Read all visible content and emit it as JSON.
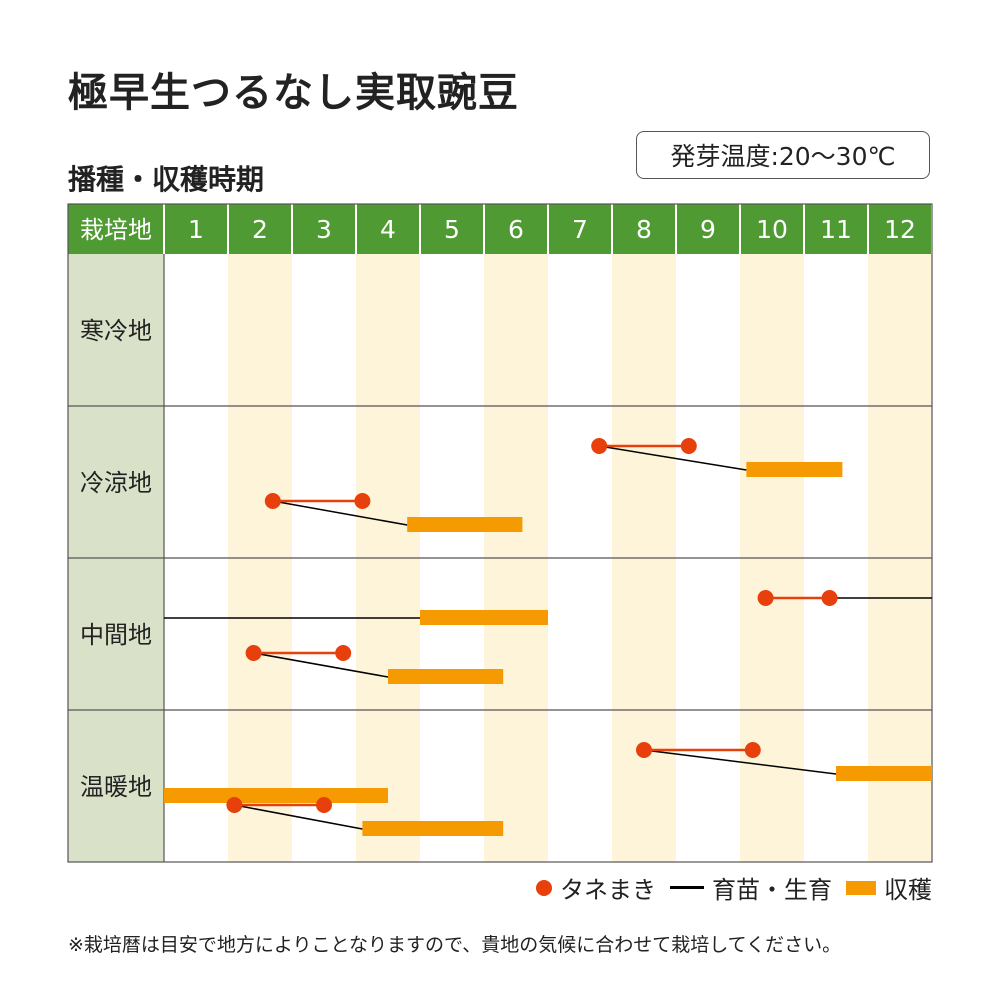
{
  "title": "極早生つるなし実取豌豆",
  "subtitle": "播種・収穫時期",
  "germination_temp": "発芽温度:20〜30℃",
  "note": "※栽培暦は目安で地方によりことなりますので、貴地の気候に合わせて栽培してください。",
  "legend": {
    "sowing": "タネまき",
    "nursery": "育苗・生育",
    "harvest": "収穫"
  },
  "colors": {
    "header": "#4f9a32",
    "region": "#d9e2c8",
    "stripe": "#fdf4d9",
    "sowing": "#e8400c",
    "harvest": "#f59a00",
    "growth": "#000000"
  },
  "chart_data": {
    "type": "gantt",
    "header_label": "栽培地",
    "months": [
      "1",
      "2",
      "3",
      "4",
      "5",
      "6",
      "7",
      "8",
      "9",
      "10",
      "11",
      "12"
    ],
    "regions": [
      {
        "name": "寒冷地",
        "schedules": []
      },
      {
        "name": "冷涼地",
        "schedules": [
          {
            "sow": [
              7.8,
              9.2
            ],
            "harvest": [
              10.1,
              11.6
            ]
          },
          {
            "sow": [
              2.7,
              4.1
            ],
            "harvest": [
              4.8,
              6.6
            ]
          }
        ]
      },
      {
        "name": "中間地",
        "schedules": [
          {
            "sow": [
              10.4,
              11.4
            ],
            "harvest_following_year": [
              5.0,
              7.0
            ]
          },
          {
            "sow": [
              2.4,
              3.8
            ],
            "harvest": [
              4.5,
              6.3
            ]
          }
        ]
      },
      {
        "name": "温暖地",
        "schedules": [
          {
            "sow": [
              8.5,
              10.2
            ],
            "harvest": [
              11.5,
              13.0
            ],
            "harvest_following_year": [
              1.0,
              4.5
            ]
          },
          {
            "sow": [
              2.1,
              3.5
            ],
            "harvest": [
              4.1,
              6.3
            ]
          }
        ]
      }
    ]
  }
}
